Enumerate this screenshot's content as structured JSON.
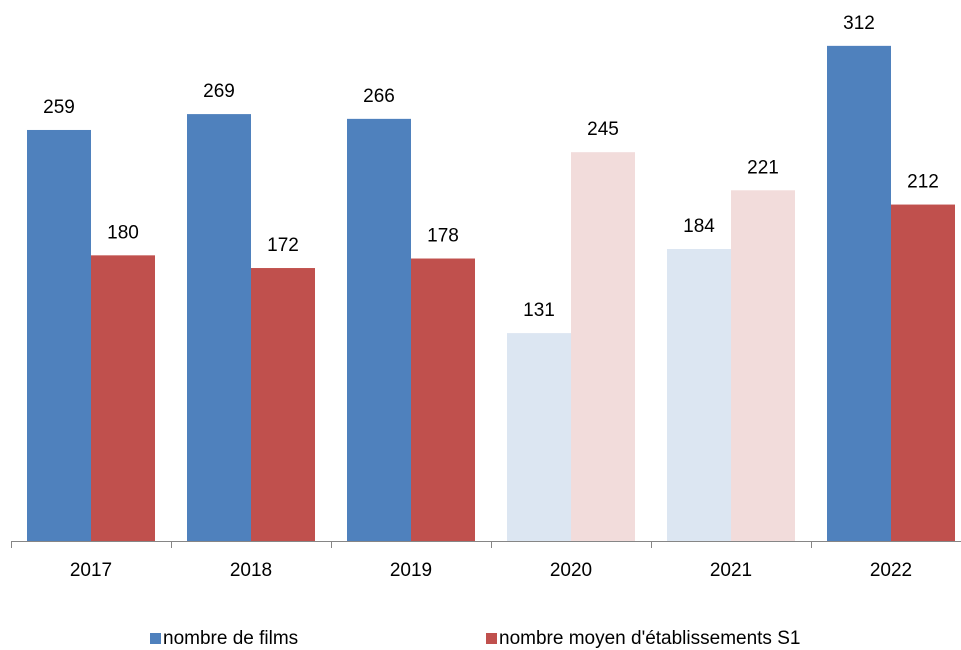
{
  "chart_data": {
    "type": "bar",
    "categories": [
      "2017",
      "2018",
      "2019",
      "2020",
      "2021",
      "2022"
    ],
    "series": [
      {
        "name": "nombre de films",
        "color": "#4f81bd",
        "point_colors": [
          "#4f81bd",
          "#4f81bd",
          "#4f81bd",
          "#dce6f2",
          "#dce6f2",
          "#4f81bd"
        ],
        "values": [
          259,
          269,
          266,
          131,
          184,
          312
        ]
      },
      {
        "name": "nombre moyen d'établissements S1",
        "color": "#c0504d",
        "point_colors": [
          "#c0504d",
          "#c0504d",
          "#c0504d",
          "#f2dcdb",
          "#f2dcdb",
          "#c0504d"
        ],
        "values": [
          180,
          172,
          178,
          245,
          221,
          212
        ]
      }
    ],
    "legend": "bottom"
  }
}
